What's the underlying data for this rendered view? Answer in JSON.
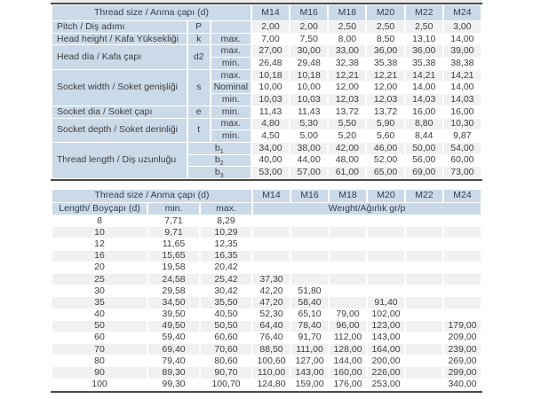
{
  "colors": {
    "header_blue": "#cbdae9",
    "row_stripe": "#f0f1f2",
    "divider_dark": "#4a4a4a",
    "text": "#3d3d3d",
    "header_text": "#33404c",
    "top_strip": "#ececec"
  },
  "table1": {
    "header_label": "Thread size / Anma çapı (d)",
    "columns": [
      "M14",
      "M16",
      "M18",
      "M20",
      "M22",
      "M24"
    ],
    "groups": [
      {
        "label": "Pitch / Diş adımı",
        "symbol": "P",
        "rows": [
          {
            "sub": "",
            "values": [
              "2,00",
              "2,00",
              "2,50",
              "2,50",
              "2,50",
              "3,00"
            ]
          }
        ]
      },
      {
        "label": "Head height / Kafa Yüksekliği",
        "symbol": "k",
        "rows": [
          {
            "sub": "max.",
            "values": [
              "7,00",
              "7,50",
              "8,00",
              "8,50",
              "13,10",
              "14,00"
            ]
          }
        ]
      },
      {
        "label": "Head dia / Kafa çapı",
        "symbol": "d2",
        "rows": [
          {
            "sub": "max.",
            "values": [
              "27,00",
              "30,00",
              "33,00",
              "36,00",
              "36,00",
              "39,00"
            ]
          },
          {
            "sub": "min.",
            "values": [
              "26,48",
              "29,48",
              "32,38",
              "35,38",
              "35,38",
              "38,38"
            ]
          }
        ]
      },
      {
        "label": "Socket width / Soket genişliği",
        "symbol": "s",
        "rows": [
          {
            "sub": "max.",
            "values": [
              "10,18",
              "10,18",
              "12,21",
              "12,21",
              "14,21",
              "14,21"
            ]
          },
          {
            "sub": "Nominal",
            "values": [
              "10,00",
              "10,00",
              "12,00",
              "12,00",
              "14,00",
              "14,00"
            ]
          },
          {
            "sub": "min.",
            "values": [
              "10,03",
              "10,03",
              "12,03",
              "12,03",
              "14,03",
              "14,03"
            ]
          }
        ]
      },
      {
        "label": "Socket dia / Soket çapı",
        "symbol": "e",
        "rows": [
          {
            "sub": "min.",
            "values": [
              "11,43",
              "11,43",
              "13,72",
              "13,72",
              "16,00",
              "16,00"
            ]
          }
        ]
      },
      {
        "label": "Socket depth / Soket derinliği",
        "symbol": "t",
        "rows": [
          {
            "sub": "max.",
            "values": [
              "4,80",
              "5,30",
              "5,50",
              "5,90",
              "8,80",
              "10,30"
            ]
          },
          {
            "sub": "min.",
            "values": [
              "4,50",
              "5,00",
              "5,20",
              "5,60",
              "8,44",
              "9,87"
            ]
          }
        ]
      },
      {
        "label": "Thread length / Diş uzunluğu",
        "symbol": "",
        "rows": [
          {
            "sym": "b1",
            "sub": "",
            "values": [
              "34,00",
              "38,00",
              "42,00",
              "46,00",
              "50,00",
              "54,00"
            ]
          },
          {
            "sym": "b2",
            "sub": "",
            "values": [
              "40,00",
              "44,00",
              "48,00",
              "52,00",
              "56,00",
              "60,00"
            ]
          },
          {
            "sym": "b3",
            "sub": "",
            "values": [
              "53,00",
              "57,00",
              "61,00",
              "65,00",
              "69,00",
              "73,00"
            ]
          }
        ]
      }
    ]
  },
  "table2": {
    "header_label": "Thread size / Anma çapı (d)",
    "columns": [
      "M14",
      "M16",
      "M18",
      "M20",
      "M22",
      "M24"
    ],
    "subheader": {
      "length": "Length/ Boyçapı (d)",
      "min": "min.",
      "max": "max.",
      "weight": "Weıght/Ağırlık gr/p"
    },
    "rows": [
      {
        "length": "8",
        "min": "7,71",
        "max": "8,29",
        "weights": [
          "",
          "",
          "",
          "",
          "",
          ""
        ]
      },
      {
        "length": "10",
        "min": "9,71",
        "max": "10,29",
        "weights": [
          "",
          "",
          "",
          "",
          "",
          ""
        ]
      },
      {
        "length": "12",
        "min": "11,65",
        "max": "12,35",
        "weights": [
          "",
          "",
          "",
          "",
          "",
          ""
        ]
      },
      {
        "length": "16",
        "min": "15,65",
        "max": "16,35",
        "weights": [
          "",
          "",
          "",
          "",
          "",
          ""
        ]
      },
      {
        "length": "20",
        "min": "19,58",
        "max": "20,42",
        "weights": [
          "",
          "",
          "",
          "",
          "",
          ""
        ]
      },
      {
        "length": "25",
        "min": "24,58",
        "max": "25,42",
        "weights": [
          "37,30",
          "",
          "",
          "",
          "",
          ""
        ]
      },
      {
        "length": "30",
        "min": "29,58",
        "max": "30,42",
        "weights": [
          "42,20",
          "51,80",
          "",
          "",
          "",
          ""
        ]
      },
      {
        "length": "35",
        "min": "34,50",
        "max": "35,50",
        "weights": [
          "47,20",
          "58,40",
          "",
          "91,40",
          "",
          ""
        ]
      },
      {
        "length": "40",
        "min": "39,50",
        "max": "40,50",
        "weights": [
          "52,30",
          "65,10",
          "79,00",
          "102,00",
          "",
          ""
        ]
      },
      {
        "length": "50",
        "min": "49,50",
        "max": "50,50",
        "weights": [
          "64,40",
          "78,40",
          "96,00",
          "123,00",
          "",
          "179,00"
        ]
      },
      {
        "length": "60",
        "min": "59,40",
        "max": "60,60",
        "weights": [
          "76,40",
          "91,70",
          "112,00",
          "143,00",
          "",
          "209,00"
        ]
      },
      {
        "length": "70",
        "min": "69,40",
        "max": "70,60",
        "weights": [
          "88,50",
          "111,00",
          "128,00",
          "164,00",
          "",
          "239,00"
        ]
      },
      {
        "length": "80",
        "min": "79,40",
        "max": "80,60",
        "weights": [
          "100,60",
          "127,00",
          "144,00",
          "200,00",
          "",
          "269,00"
        ]
      },
      {
        "length": "90",
        "min": "89,30",
        "max": "90,70",
        "weights": [
          "110,00",
          "143,00",
          "160,00",
          "226,00",
          "",
          "299,00"
        ]
      },
      {
        "length": "100",
        "min": "99,30",
        "max": "100,70",
        "weights": [
          "124,80",
          "159,00",
          "176,00",
          "253,00",
          "",
          "340,00"
        ]
      }
    ]
  }
}
